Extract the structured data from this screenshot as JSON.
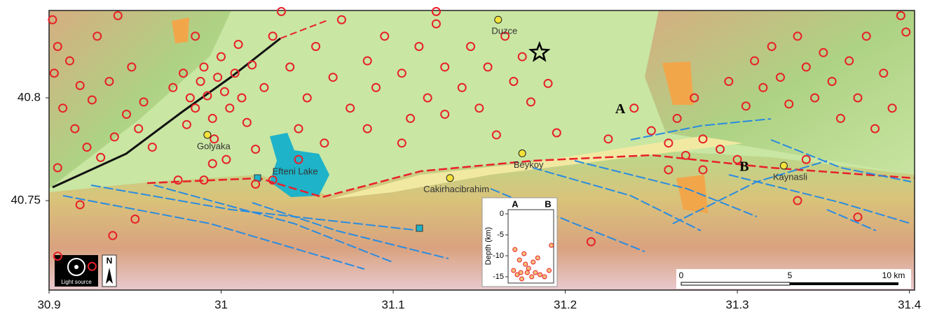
{
  "chart_data": {
    "type": "map",
    "xlim": [
      30.9,
      31.403
    ],
    "ylim": [
      40.7065,
      40.8425
    ],
    "xticks": [
      30.9,
      31,
      31.1,
      31.2,
      31.3,
      31.4
    ],
    "yticks": [
      40.75,
      40.8
    ],
    "quake_color": "#e8202a",
    "places": [
      {
        "name": "Duzce",
        "lon": 31.161,
        "lat": 40.838
      },
      {
        "name": "Golyaka",
        "lon": 30.992,
        "lat": 40.782
      },
      {
        "name": "Beykoy",
        "lon": 31.175,
        "lat": 40.773
      },
      {
        "name": "Cakirhacibrahim",
        "lon": 31.133,
        "lat": 40.761
      },
      {
        "name": "Kaynasli",
        "lon": 31.327,
        "lat": 40.767
      }
    ],
    "lake": {
      "name": "Efteni Lake",
      "lon": 31.043,
      "lat": 40.764
    },
    "epicenter": {
      "lon": 31.185,
      "lat": 40.822
    },
    "section_ends": [
      {
        "name": "A",
        "lon": 31.232,
        "lat": 40.794
      },
      {
        "name": "B",
        "lon": 31.304,
        "lat": 40.766
      }
    ],
    "earthquakes": [
      [
        30.902,
        40.838
      ],
      [
        30.905,
        40.825
      ],
      [
        30.903,
        40.812
      ],
      [
        30.912,
        40.818
      ],
      [
        30.918,
        40.806
      ],
      [
        30.925,
        40.799
      ],
      [
        30.908,
        40.795
      ],
      [
        30.915,
        40.785
      ],
      [
        30.922,
        40.776
      ],
      [
        30.93,
        40.771
      ],
      [
        30.938,
        40.781
      ],
      [
        30.945,
        40.792
      ],
      [
        30.935,
        40.808
      ],
      [
        30.948,
        40.815
      ],
      [
        30.955,
        40.798
      ],
      [
        30.952,
        40.785
      ],
      [
        30.96,
        40.776
      ],
      [
        30.928,
        40.83
      ],
      [
        30.94,
        40.84
      ],
      [
        30.905,
        40.766
      ],
      [
        30.918,
        40.748
      ],
      [
        30.937,
        40.733
      ],
      [
        30.95,
        40.741
      ],
      [
        30.905,
        40.723
      ],
      [
        30.925,
        40.718
      ],
      [
        30.972,
        40.805
      ],
      [
        30.978,
        40.812
      ],
      [
        30.982,
        40.8
      ],
      [
        30.985,
        40.795
      ],
      [
        30.988,
        40.808
      ],
      [
        30.99,
        40.815
      ],
      [
        30.992,
        40.801
      ],
      [
        30.995,
        40.79
      ],
      [
        30.998,
        40.81
      ],
      [
        31.0,
        40.82
      ],
      [
        31.002,
        40.803
      ],
      [
        31.005,
        40.795
      ],
      [
        31.008,
        40.812
      ],
      [
        31.01,
        40.826
      ],
      [
        31.012,
        40.8
      ],
      [
        31.015,
        40.788
      ],
      [
        31.018,
        40.816
      ],
      [
        30.98,
        40.787
      ],
      [
        30.996,
        40.78
      ],
      [
        30.985,
        40.83
      ],
      [
        31.003,
        40.77
      ],
      [
        30.995,
        40.768
      ],
      [
        31.02,
        40.775
      ],
      [
        31.025,
        40.805
      ],
      [
        30.975,
        40.76
      ],
      [
        30.99,
        40.76
      ],
      [
        31.03,
        40.83
      ],
      [
        31.04,
        40.815
      ],
      [
        31.05,
        40.8
      ],
      [
        31.055,
        40.825
      ],
      [
        31.065,
        40.81
      ],
      [
        31.07,
        40.838
      ],
      [
        31.075,
        40.795
      ],
      [
        31.085,
        40.818
      ],
      [
        31.09,
        40.805
      ],
      [
        31.095,
        40.83
      ],
      [
        31.105,
        40.812
      ],
      [
        31.11,
        40.79
      ],
      [
        31.115,
        40.825
      ],
      [
        31.12,
        40.8
      ],
      [
        31.125,
        40.836
      ],
      [
        31.13,
        40.815
      ],
      [
        31.14,
        40.805
      ],
      [
        31.145,
        40.825
      ],
      [
        31.15,
        40.795
      ],
      [
        31.155,
        40.815
      ],
      [
        31.165,
        40.83
      ],
      [
        31.17,
        40.808
      ],
      [
        31.175,
        40.82
      ],
      [
        31.18,
        40.798
      ],
      [
        31.19,
        40.807
      ],
      [
        31.045,
        40.785
      ],
      [
        31.06,
        40.778
      ],
      [
        31.085,
        40.785
      ],
      [
        31.105,
        40.778
      ],
      [
        31.13,
        40.792
      ],
      [
        31.16,
        40.782
      ],
      [
        31.195,
        40.783
      ],
      [
        31.035,
        40.842
      ],
      [
        31.125,
        40.842
      ],
      [
        31.045,
        40.77
      ],
      [
        31.03,
        40.76
      ],
      [
        31.24,
        40.795
      ],
      [
        31.25,
        40.784
      ],
      [
        31.26,
        40.778
      ],
      [
        31.265,
        40.79
      ],
      [
        31.27,
        40.772
      ],
      [
        31.275,
        40.8
      ],
      [
        31.28,
        40.78
      ],
      [
        31.29,
        40.775
      ],
      [
        31.295,
        40.808
      ],
      [
        31.305,
        40.796
      ],
      [
        31.31,
        40.818
      ],
      [
        31.315,
        40.805
      ],
      [
        31.32,
        40.825
      ],
      [
        31.325,
        40.81
      ],
      [
        31.33,
        40.797
      ],
      [
        31.335,
        40.83
      ],
      [
        31.34,
        40.815
      ],
      [
        31.345,
        40.8
      ],
      [
        31.35,
        40.822
      ],
      [
        31.355,
        40.808
      ],
      [
        31.36,
        40.79
      ],
      [
        31.365,
        40.818
      ],
      [
        31.37,
        40.8
      ],
      [
        31.375,
        40.83
      ],
      [
        31.38,
        40.785
      ],
      [
        31.385,
        40.812
      ],
      [
        31.39,
        40.795
      ],
      [
        31.398,
        40.832
      ],
      [
        31.395,
        40.84
      ],
      [
        31.3,
        40.77
      ],
      [
        31.28,
        40.765
      ],
      [
        31.335,
        40.75
      ],
      [
        31.37,
        40.742
      ],
      [
        31.34,
        40.77
      ],
      [
        31.26,
        40.765
      ],
      [
        31.225,
        40.78
      ],
      [
        31.215,
        40.73
      ],
      [
        31.02,
        40.758
      ]
    ],
    "section": {
      "ylabel": "Depth (km)",
      "left": "A",
      "right": "B",
      "xlim": [
        0,
        1
      ],
      "ylim": [
        -16.5,
        1
      ],
      "yticks": [
        0,
        -5,
        -10,
        -15
      ],
      "x": [
        0.12,
        0.2,
        0.3,
        0.25,
        0.38,
        0.45,
        0.52,
        0.6,
        0.35,
        0.15,
        0.7,
        0.8,
        0.9,
        0.42,
        0.55,
        0.65,
        0.28,
        0.95
      ],
      "depth": [
        -13.5,
        -14.5,
        -15.5,
        -11,
        -12,
        -13,
        -15,
        -14,
        -9.5,
        -8.5,
        -14.5,
        -15,
        -13.5,
        -14,
        -11.5,
        -10.5,
        -14,
        -7.5
      ]
    },
    "light_source": "Light source",
    "north": "N",
    "scale_labels": [
      "0",
      "5",
      "10 km"
    ]
  }
}
